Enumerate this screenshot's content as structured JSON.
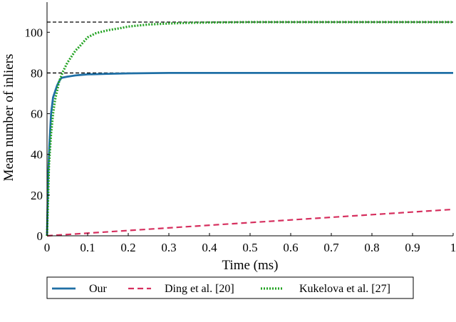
{
  "chart_data": {
    "type": "line",
    "title": "",
    "xlabel": "Time (ms)",
    "ylabel": "Mean number of inliers",
    "xlim": [
      0,
      1
    ],
    "ylim": [
      0,
      105
    ],
    "xticks": [
      0,
      0.1,
      0.2,
      0.3,
      0.4,
      0.5,
      0.6,
      0.7,
      0.8,
      0.9,
      1
    ],
    "xtick_labels": [
      "0",
      "0.1",
      "0.2",
      "0.3",
      "0.4",
      "0.5",
      "0.6",
      "0.7",
      "0.8",
      "0.9",
      "1"
    ],
    "yticks": [
      0,
      20,
      40,
      60,
      80,
      100
    ],
    "ytick_labels": [
      "0",
      "20",
      "40",
      "60",
      "80",
      "100"
    ],
    "grid": false,
    "legend_position": "bottom",
    "reference_lines": [
      {
        "y": 105,
        "x_range": [
          0,
          1
        ],
        "style": "dashed",
        "color": "#000000"
      },
      {
        "y": 80,
        "x_range": [
          0,
          1
        ],
        "style": "dashed",
        "color": "#000000"
      }
    ],
    "series": [
      {
        "name": "Our",
        "style": "solid",
        "color": "#1f6fa5",
        "x": [
          0,
          0.003,
          0.006,
          0.01,
          0.015,
          0.02,
          0.025,
          0.03,
          0.035,
          0.04,
          0.05,
          0.06,
          0.07,
          0.08,
          0.1,
          0.15,
          0.2,
          0.3,
          0.5,
          1.0
        ],
        "y": [
          0,
          30,
          45,
          60,
          68,
          71,
          74,
          76,
          77.5,
          77.8,
          78.2,
          78.5,
          78.8,
          79,
          79.3,
          79.6,
          79.8,
          80,
          80,
          80
        ]
      },
      {
        "name": "Ding et al. [20]",
        "style": "dashed",
        "color": "#d62f5e",
        "x": [
          0,
          1.0
        ],
        "y": [
          0,
          13
        ]
      },
      {
        "name": "Kukelova et al. [27]",
        "style": "dotted",
        "color": "#23a323",
        "x": [
          0,
          0.005,
          0.01,
          0.015,
          0.02,
          0.03,
          0.04,
          0.05,
          0.06,
          0.07,
          0.08,
          0.1,
          0.12,
          0.15,
          0.18,
          0.2,
          0.25,
          0.3,
          0.35,
          0.4,
          0.5,
          0.7,
          1.0
        ],
        "y": [
          0,
          35,
          50,
          60,
          67,
          76,
          81,
          85,
          88,
          91,
          93,
          97.5,
          99.5,
          101,
          102,
          102.8,
          103.8,
          104.3,
          104.6,
          104.8,
          105,
          105,
          105
        ]
      }
    ]
  }
}
